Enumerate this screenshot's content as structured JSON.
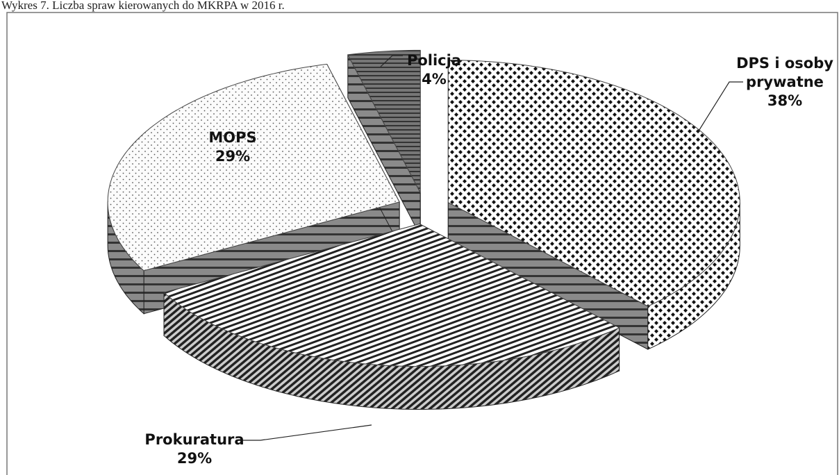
{
  "chart_data": {
    "type": "pie",
    "title": "Wykres 7. Liczba spraw kierowanych do MKRPA w 2016 r.",
    "categories": [
      "DPS i osoby prywatne",
      "Prokuratura",
      "MOPS",
      "Policja"
    ],
    "values": [
      38,
      29,
      29,
      4
    ],
    "value_labels": [
      "38%",
      "29%",
      "29%",
      "4%"
    ]
  }
}
